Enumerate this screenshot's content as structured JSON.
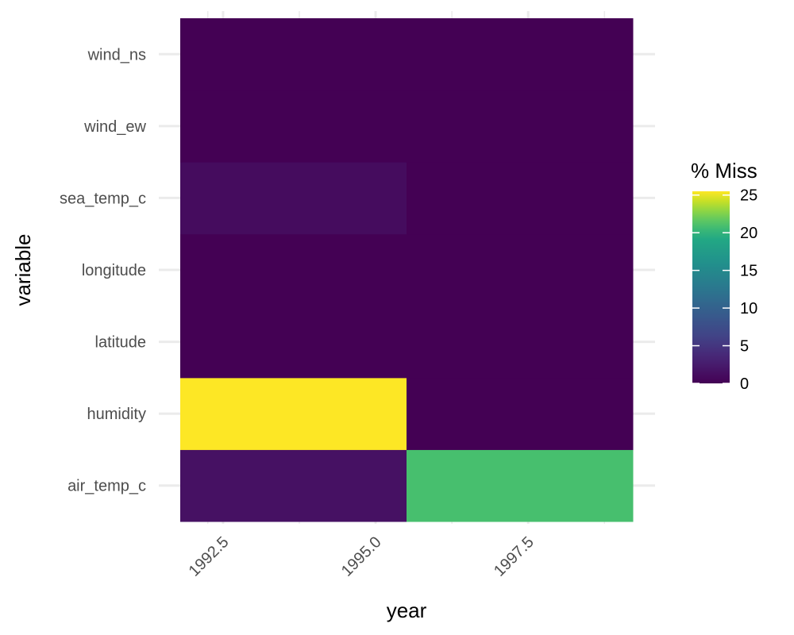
{
  "chart_data": {
    "type": "heatmap",
    "xlabel": "year",
    "ylabel": "variable",
    "x_ticks": [
      1992.5,
      1995.0,
      1997.5
    ],
    "x_tick_labels": [
      "1992.5",
      "1995.0",
      "1997.5"
    ],
    "xlim": [
      1991.5,
      1999.5
    ],
    "x_bins": [
      [
        1992,
        1996
      ],
      [
        1996,
        1999
      ]
    ],
    "y_categories": [
      "air_temp_c",
      "humidity",
      "latitude",
      "longitude",
      "sea_temp_c",
      "wind_ew",
      "wind_ns"
    ],
    "values": [
      [
        1.5,
        21.0
      ],
      [
        25.5,
        0.0
      ],
      [
        0.0,
        0.0
      ],
      [
        0.0,
        0.0
      ],
      [
        1.0,
        0.0
      ],
      [
        0.0,
        0.0
      ],
      [
        0.0,
        0.0
      ]
    ],
    "legend": {
      "title": "% Miss",
      "position": "right",
      "range": [
        0,
        25.5
      ],
      "ticks": [
        0,
        5,
        10,
        15,
        20,
        25
      ],
      "tick_labels": [
        "0",
        "5",
        "10",
        "15",
        "20",
        "25"
      ],
      "palette": "viridis"
    },
    "grid": true
  }
}
